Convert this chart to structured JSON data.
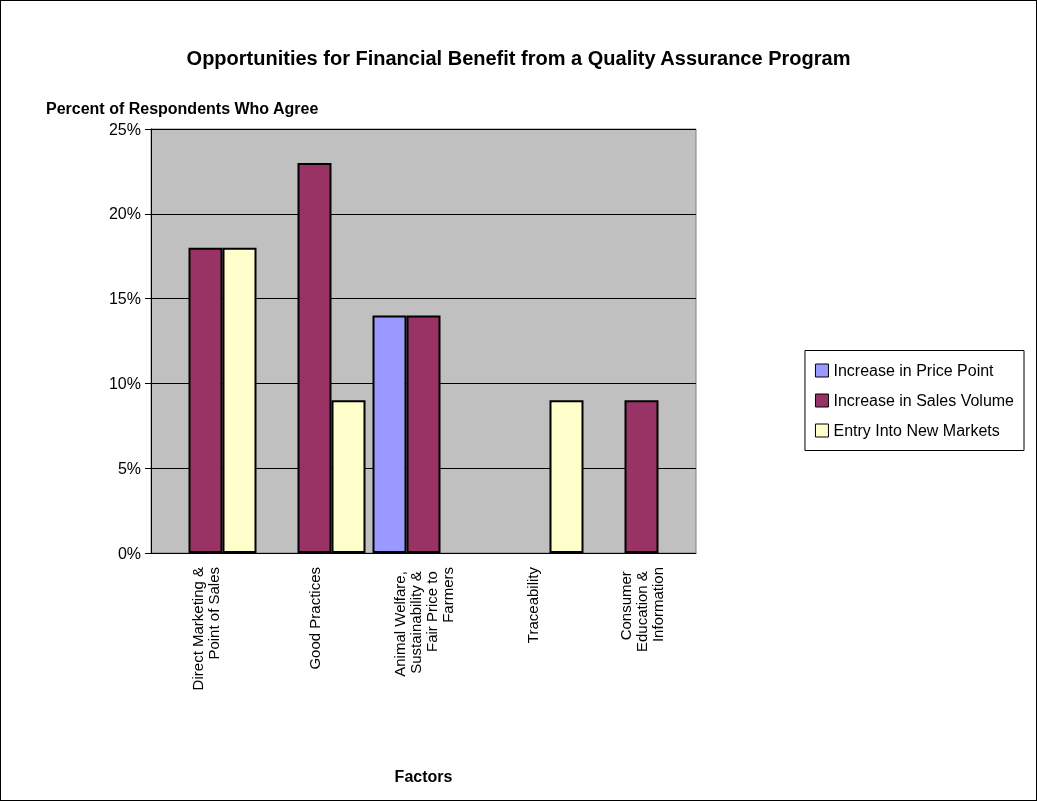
{
  "chart_data": {
    "type": "bar",
    "title": "Opportunities for Financial Benefit from a Quality Assurance Program",
    "ylabel": "Percent of Respondents Who Agree",
    "xlabel": "Factors",
    "categories": [
      "Direct Marketing & Point of Sales",
      "Good Practices",
      "Animal Welfare, Sustainability & Fair Price to Farmers",
      "Traceability",
      "Consumer Education & Information"
    ],
    "series": [
      {
        "name": "Increase in Price Point",
        "color": "#9999ff",
        "values": [
          null,
          null,
          14,
          null,
          null
        ]
      },
      {
        "name": "Increase in Sales Volume",
        "color": "#993366",
        "values": [
          18,
          23,
          14,
          null,
          9
        ]
      },
      {
        "name": "Entry Into New Markets",
        "color": "#ffffcc",
        "values": [
          18,
          9,
          null,
          9,
          null
        ]
      }
    ],
    "ylim": [
      0,
      25
    ],
    "yticks": [
      {
        "value": 0,
        "label": "0%"
      },
      {
        "value": 5,
        "label": "5%"
      },
      {
        "value": 10,
        "label": "10%"
      },
      {
        "value": 15,
        "label": "15%"
      },
      {
        "value": 20,
        "label": "20%"
      },
      {
        "value": 25,
        "label": "25%"
      }
    ],
    "grid": "y",
    "legend": "right"
  }
}
